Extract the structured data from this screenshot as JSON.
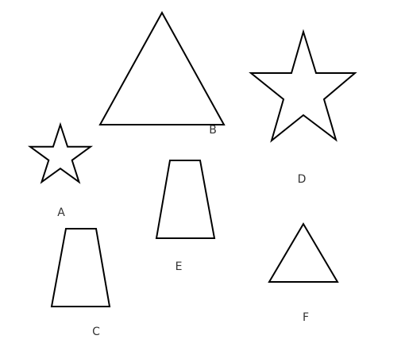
{
  "figure": {
    "background": "#ffffff",
    "stroke_color": "#000000",
    "label_color": "#333333",
    "shapes": [
      {
        "label": "A",
        "kind": "star"
      },
      {
        "label": "B",
        "kind": "triangle"
      },
      {
        "label": "C",
        "kind": "trapezoid"
      },
      {
        "label": "D",
        "kind": "star"
      },
      {
        "label": "E",
        "kind": "trapezoid"
      },
      {
        "label": "F",
        "kind": "triangle"
      }
    ]
  }
}
